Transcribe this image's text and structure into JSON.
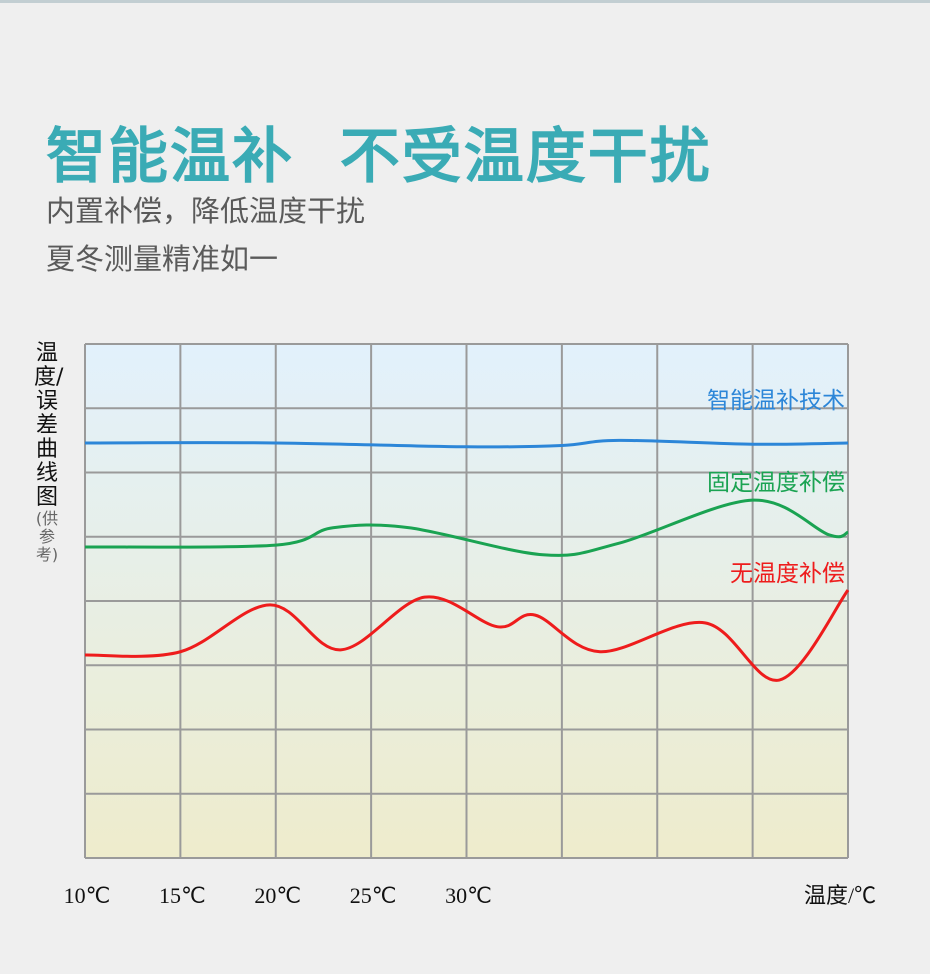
{
  "header": {
    "title": "智能温补  不受温度干扰",
    "subtitle_lines": [
      "内置补偿，降低温度干扰",
      "夏冬测量精准如一"
    ]
  },
  "chart_data": {
    "type": "line",
    "title": "",
    "ylabel": "温度/误差曲线图",
    "ylabel_note": "(供参考)",
    "xlabel": "温度/℃",
    "x_tick_labels": [
      "10℃",
      "15℃",
      "20℃",
      "25℃",
      "30℃"
    ],
    "x_ticks": [
      10,
      15,
      20,
      25,
      30
    ],
    "xlim": [
      10,
      50
    ],
    "ylim": [
      0,
      8
    ],
    "grid": true,
    "background_gradient": [
      "#e2f1fc",
      "#eeeccc"
    ],
    "series": [
      {
        "name": "智能温补技术",
        "color": "#2c86d8",
        "points": [
          [
            10,
            6.46
          ],
          [
            20,
            6.46
          ],
          [
            30,
            6.4
          ],
          [
            35,
            6.42
          ],
          [
            38,
            6.5
          ],
          [
            45,
            6.44
          ],
          [
            50,
            6.46
          ]
        ]
      },
      {
        "name": "固定温度补偿",
        "color": "#1aa352",
        "points": [
          [
            10,
            4.84
          ],
          [
            20,
            4.87
          ],
          [
            23,
            5.14
          ],
          [
            27,
            5.14
          ],
          [
            34,
            4.72
          ],
          [
            38,
            4.9
          ],
          [
            45,
            5.57
          ],
          [
            49,
            5.03
          ],
          [
            50,
            5.07
          ]
        ]
      },
      {
        "name": "无温度补偿",
        "color": "#ee1c1c",
        "points": [
          [
            10,
            3.16
          ],
          [
            15,
            3.21
          ],
          [
            19.7,
            3.94
          ],
          [
            23.4,
            3.24
          ],
          [
            27.8,
            4.06
          ],
          [
            31.6,
            3.6
          ],
          [
            33.6,
            3.78
          ],
          [
            37,
            3.21
          ],
          [
            42.5,
            3.66
          ],
          [
            46.4,
            2.77
          ],
          [
            50,
            4.17
          ]
        ]
      }
    ]
  }
}
